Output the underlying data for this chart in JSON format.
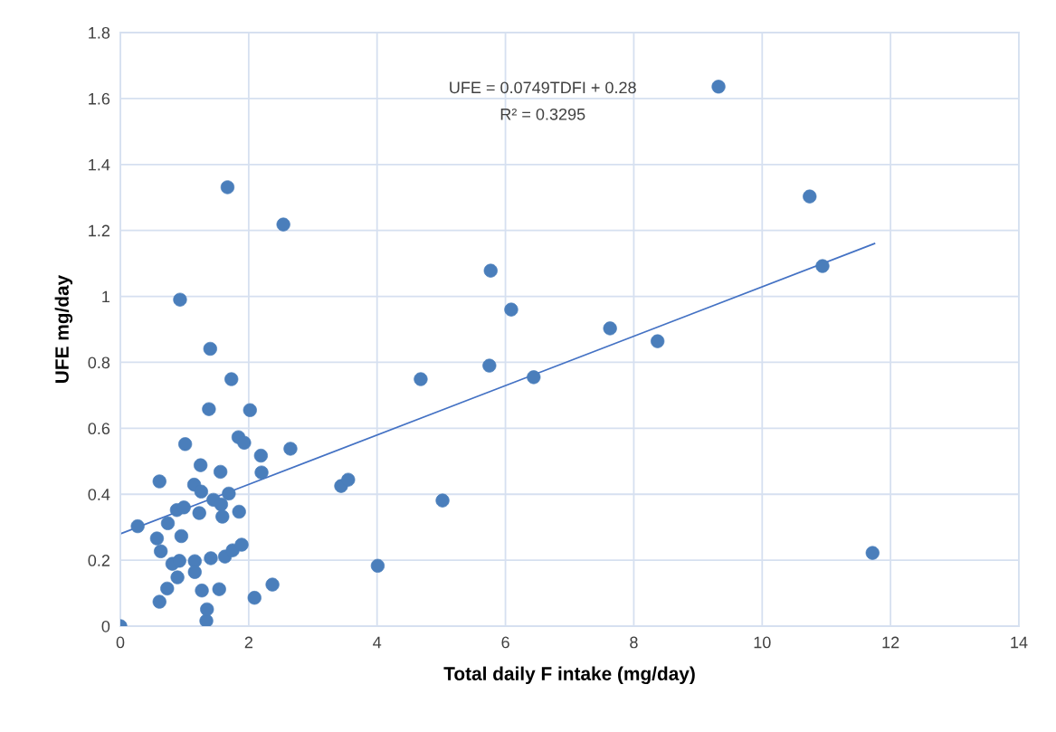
{
  "chart_data": {
    "type": "scatter",
    "xlabel": "Total daily F intake (mg/day)",
    "ylabel": "UFE mg/day",
    "xlim": [
      0,
      14
    ],
    "xticks": [
      0,
      2,
      4,
      6,
      8,
      10,
      12,
      14
    ],
    "ylim": [
      0,
      1.8
    ],
    "yticks": [
      0,
      0.2,
      0.4,
      0.6,
      0.8,
      1,
      1.2,
      1.4,
      1.6,
      1.8
    ],
    "grid": true,
    "annotations": [
      "UFE = 0.0749TDFI + 0.28",
      "R² = 0.3295"
    ],
    "series": [
      {
        "marker": "circle",
        "color": "#4a7ebb",
        "x": [
          0,
          0.27,
          0.57,
          0.61,
          0.61,
          0.63,
          0.73,
          0.74,
          0.81,
          0.88,
          0.89,
          0.92,
          0.93,
          0.95,
          0.99,
          1.01,
          1.15,
          1.16,
          1.16,
          1.23,
          1.25,
          1.26,
          1.27,
          1.34,
          1.35,
          1.38,
          1.4,
          1.41,
          1.45,
          1.54,
          1.56,
          1.57,
          1.59,
          1.63,
          1.67,
          1.69,
          1.73,
          1.75,
          1.84,
          1.85,
          1.89,
          1.93,
          2.02,
          2.09,
          2.19,
          2.2,
          2.37,
          2.54,
          2.65,
          3.44,
          3.55,
          4.01,
          4.68,
          5.02,
          5.75,
          5.77,
          6.09,
          6.44,
          7.63,
          8.37,
          9.32,
          10.74,
          10.94,
          11.72
        ],
        "values": [
          0,
          0.303,
          0.266,
          0.439,
          0.074,
          0.227,
          0.114,
          0.312,
          0.189,
          0.352,
          0.148,
          0.198,
          0.99,
          0.273,
          0.36,
          0.552,
          0.429,
          0.197,
          0.164,
          0.343,
          0.488,
          0.408,
          0.108,
          0.016,
          0.051,
          0.658,
          0.841,
          0.206,
          0.383,
          0.112,
          0.468,
          0.369,
          0.332,
          0.211,
          1.331,
          0.402,
          0.749,
          0.23,
          0.573,
          0.347,
          0.247,
          0.556,
          0.655,
          0.086,
          0.517,
          0.466,
          0.126,
          1.218,
          0.538,
          0.425,
          0.444,
          0.183,
          0.749,
          0.381,
          0.79,
          1.078,
          0.96,
          0.755,
          0.903,
          0.864,
          1.636,
          1.303,
          1.092,
          0.222
        ]
      },
      {
        "type": "line",
        "marker": "none",
        "color": "#4472c4",
        "x": [
          0,
          11.75
        ],
        "values": [
          0.28,
          1.16
        ]
      }
    ]
  }
}
